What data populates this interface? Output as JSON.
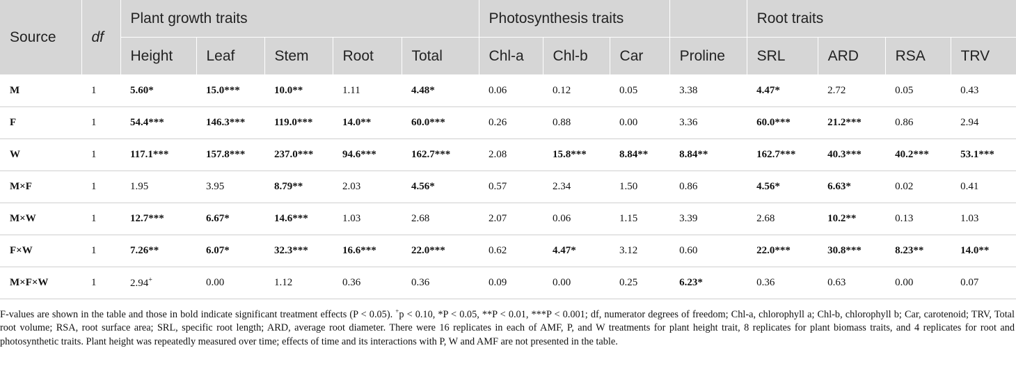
{
  "table": {
    "groups": [
      {
        "text": "Source",
        "span": 1,
        "rowspan": 2
      },
      {
        "text": "df",
        "span": 1,
        "rowspan": 2,
        "italic": true
      },
      {
        "text": "Plant growth traits",
        "span": 5
      },
      {
        "text": "Photosynthesis traits",
        "span": 3
      },
      {
        "text": null,
        "span": 1
      },
      {
        "text": "Root traits",
        "span": 4
      }
    ],
    "columns": [
      "Height",
      "Leaf",
      "Stem",
      "Root",
      "Total",
      "Chl-a",
      "Chl-b",
      "Car",
      "Proline",
      "SRL",
      "ARD",
      "RSA",
      "TRV"
    ],
    "rows": [
      {
        "source": "M",
        "df": "1",
        "cells": [
          {
            "text": "5.60*",
            "bold": true
          },
          {
            "text": "15.0***",
            "bold": true
          },
          {
            "text": "10.0**",
            "bold": true
          },
          {
            "text": "1.11",
            "bold": false
          },
          {
            "text": "4.48*",
            "bold": true
          },
          {
            "text": "0.06",
            "bold": false
          },
          {
            "text": "0.12",
            "bold": false
          },
          {
            "text": "0.05",
            "bold": false
          },
          {
            "text": "3.38",
            "bold": false
          },
          {
            "text": "4.47*",
            "bold": true
          },
          {
            "text": "2.72",
            "bold": false
          },
          {
            "text": "0.05",
            "bold": false
          },
          {
            "text": "0.43",
            "bold": false
          }
        ]
      },
      {
        "source": "F",
        "df": "1",
        "cells": [
          {
            "text": "54.4***",
            "bold": true
          },
          {
            "text": "146.3***",
            "bold": true
          },
          {
            "text": "119.0***",
            "bold": true
          },
          {
            "text": "14.0**",
            "bold": true
          },
          {
            "text": "60.0***",
            "bold": true
          },
          {
            "text": "0.26",
            "bold": false
          },
          {
            "text": "0.88",
            "bold": false
          },
          {
            "text": "0.00",
            "bold": false
          },
          {
            "text": "3.36",
            "bold": false
          },
          {
            "text": "60.0***",
            "bold": true
          },
          {
            "text": "21.2***",
            "bold": true
          },
          {
            "text": "0.86",
            "bold": false
          },
          {
            "text": "2.94",
            "bold": false
          }
        ]
      },
      {
        "source": "W",
        "df": "1",
        "cells": [
          {
            "text": "117.1***",
            "bold": true
          },
          {
            "text": "157.8***",
            "bold": true
          },
          {
            "text": "237.0***",
            "bold": true
          },
          {
            "text": "94.6***",
            "bold": true
          },
          {
            "text": "162.7***",
            "bold": true
          },
          {
            "text": "2.08",
            "bold": false
          },
          {
            "text": "15.8***",
            "bold": true
          },
          {
            "text": "8.84**",
            "bold": true
          },
          {
            "text": "8.84**",
            "bold": true
          },
          {
            "text": "162.7***",
            "bold": true
          },
          {
            "text": "40.3***",
            "bold": true
          },
          {
            "text": "40.2***",
            "bold": true
          },
          {
            "text": "53.1***",
            "bold": true
          }
        ]
      },
      {
        "source": "M×F",
        "df": "1",
        "cells": [
          {
            "text": "1.95",
            "bold": false
          },
          {
            "text": "3.95",
            "bold": false
          },
          {
            "text": "8.79**",
            "bold": true
          },
          {
            "text": "2.03",
            "bold": false
          },
          {
            "text": "4.56*",
            "bold": true
          },
          {
            "text": "0.57",
            "bold": false
          },
          {
            "text": "2.34",
            "bold": false
          },
          {
            "text": "1.50",
            "bold": false
          },
          {
            "text": "0.86",
            "bold": false
          },
          {
            "text": "4.56*",
            "bold": true
          },
          {
            "text": "6.63*",
            "bold": true
          },
          {
            "text": "0.02",
            "bold": false
          },
          {
            "text": "0.41",
            "bold": false
          }
        ]
      },
      {
        "source": "M×W",
        "df": "1",
        "cells": [
          {
            "text": "12.7***",
            "bold": true
          },
          {
            "text": "6.67*",
            "bold": true
          },
          {
            "text": "14.6***",
            "bold": true
          },
          {
            "text": "1.03",
            "bold": false
          },
          {
            "text": "2.68",
            "bold": false
          },
          {
            "text": "2.07",
            "bold": false
          },
          {
            "text": "0.06",
            "bold": false
          },
          {
            "text": "1.15",
            "bold": false
          },
          {
            "text": "3.39",
            "bold": false
          },
          {
            "text": "2.68",
            "bold": false
          },
          {
            "text": "10.2**",
            "bold": true
          },
          {
            "text": "0.13",
            "bold": false
          },
          {
            "text": "1.03",
            "bold": false
          }
        ]
      },
      {
        "source": "F×W",
        "df": "1",
        "cells": [
          {
            "text": "7.26**",
            "bold": true
          },
          {
            "text": "6.07*",
            "bold": true
          },
          {
            "text": "32.3***",
            "bold": true
          },
          {
            "text": "16.6***",
            "bold": true
          },
          {
            "text": "22.0***",
            "bold": true
          },
          {
            "text": "0.62",
            "bold": false
          },
          {
            "text": "4.47*",
            "bold": true
          },
          {
            "text": "3.12",
            "bold": false
          },
          {
            "text": "0.60",
            "bold": false
          },
          {
            "text": "22.0***",
            "bold": true
          },
          {
            "text": "30.8***",
            "bold": true
          },
          {
            "text": "8.23**",
            "bold": true
          },
          {
            "text": "14.0**",
            "bold": true
          }
        ]
      },
      {
        "source": "M×F×W",
        "df": "1",
        "cells": [
          {
            "text": "2.94",
            "sup": "+",
            "bold": false
          },
          {
            "text": "0.00",
            "bold": false
          },
          {
            "text": "1.12",
            "bold": false
          },
          {
            "text": "0.36",
            "bold": false
          },
          {
            "text": "0.36",
            "bold": false
          },
          {
            "text": "0.09",
            "bold": false
          },
          {
            "text": "0.00",
            "bold": false
          },
          {
            "text": "0.25",
            "bold": false
          },
          {
            "text": "6.23*",
            "bold": true
          },
          {
            "text": "0.36",
            "bold": false
          },
          {
            "text": "0.63",
            "bold": false
          },
          {
            "text": "0.00",
            "bold": false
          },
          {
            "text": "0.07",
            "bold": false
          }
        ]
      }
    ]
  },
  "footnote": {
    "before": "F-values are shown in the table and those in bold indicate significant treatment effects (P < 0.05). ",
    "sup": "+",
    "after": "p < 0.10, *P < 0.05, **P < 0.01, ***P < 0.001; df, numerator degrees of freedom; Chl-a, chlorophyll a; Chl-b, chlorophyll b; Car, carotenoid; TRV, Total root volume; RSA, root surface area; SRL, specific root length; ARD, average root diameter. There were 16 replicates in each of AMF, P, and W treatments for plant height trait, 8 replicates for plant biomass traits, and 4 replicates for root and photosynthetic traits. Plant height was repeatedly measured over time; effects of time and its interactions with P, W and AMF are not presented in the table."
  }
}
